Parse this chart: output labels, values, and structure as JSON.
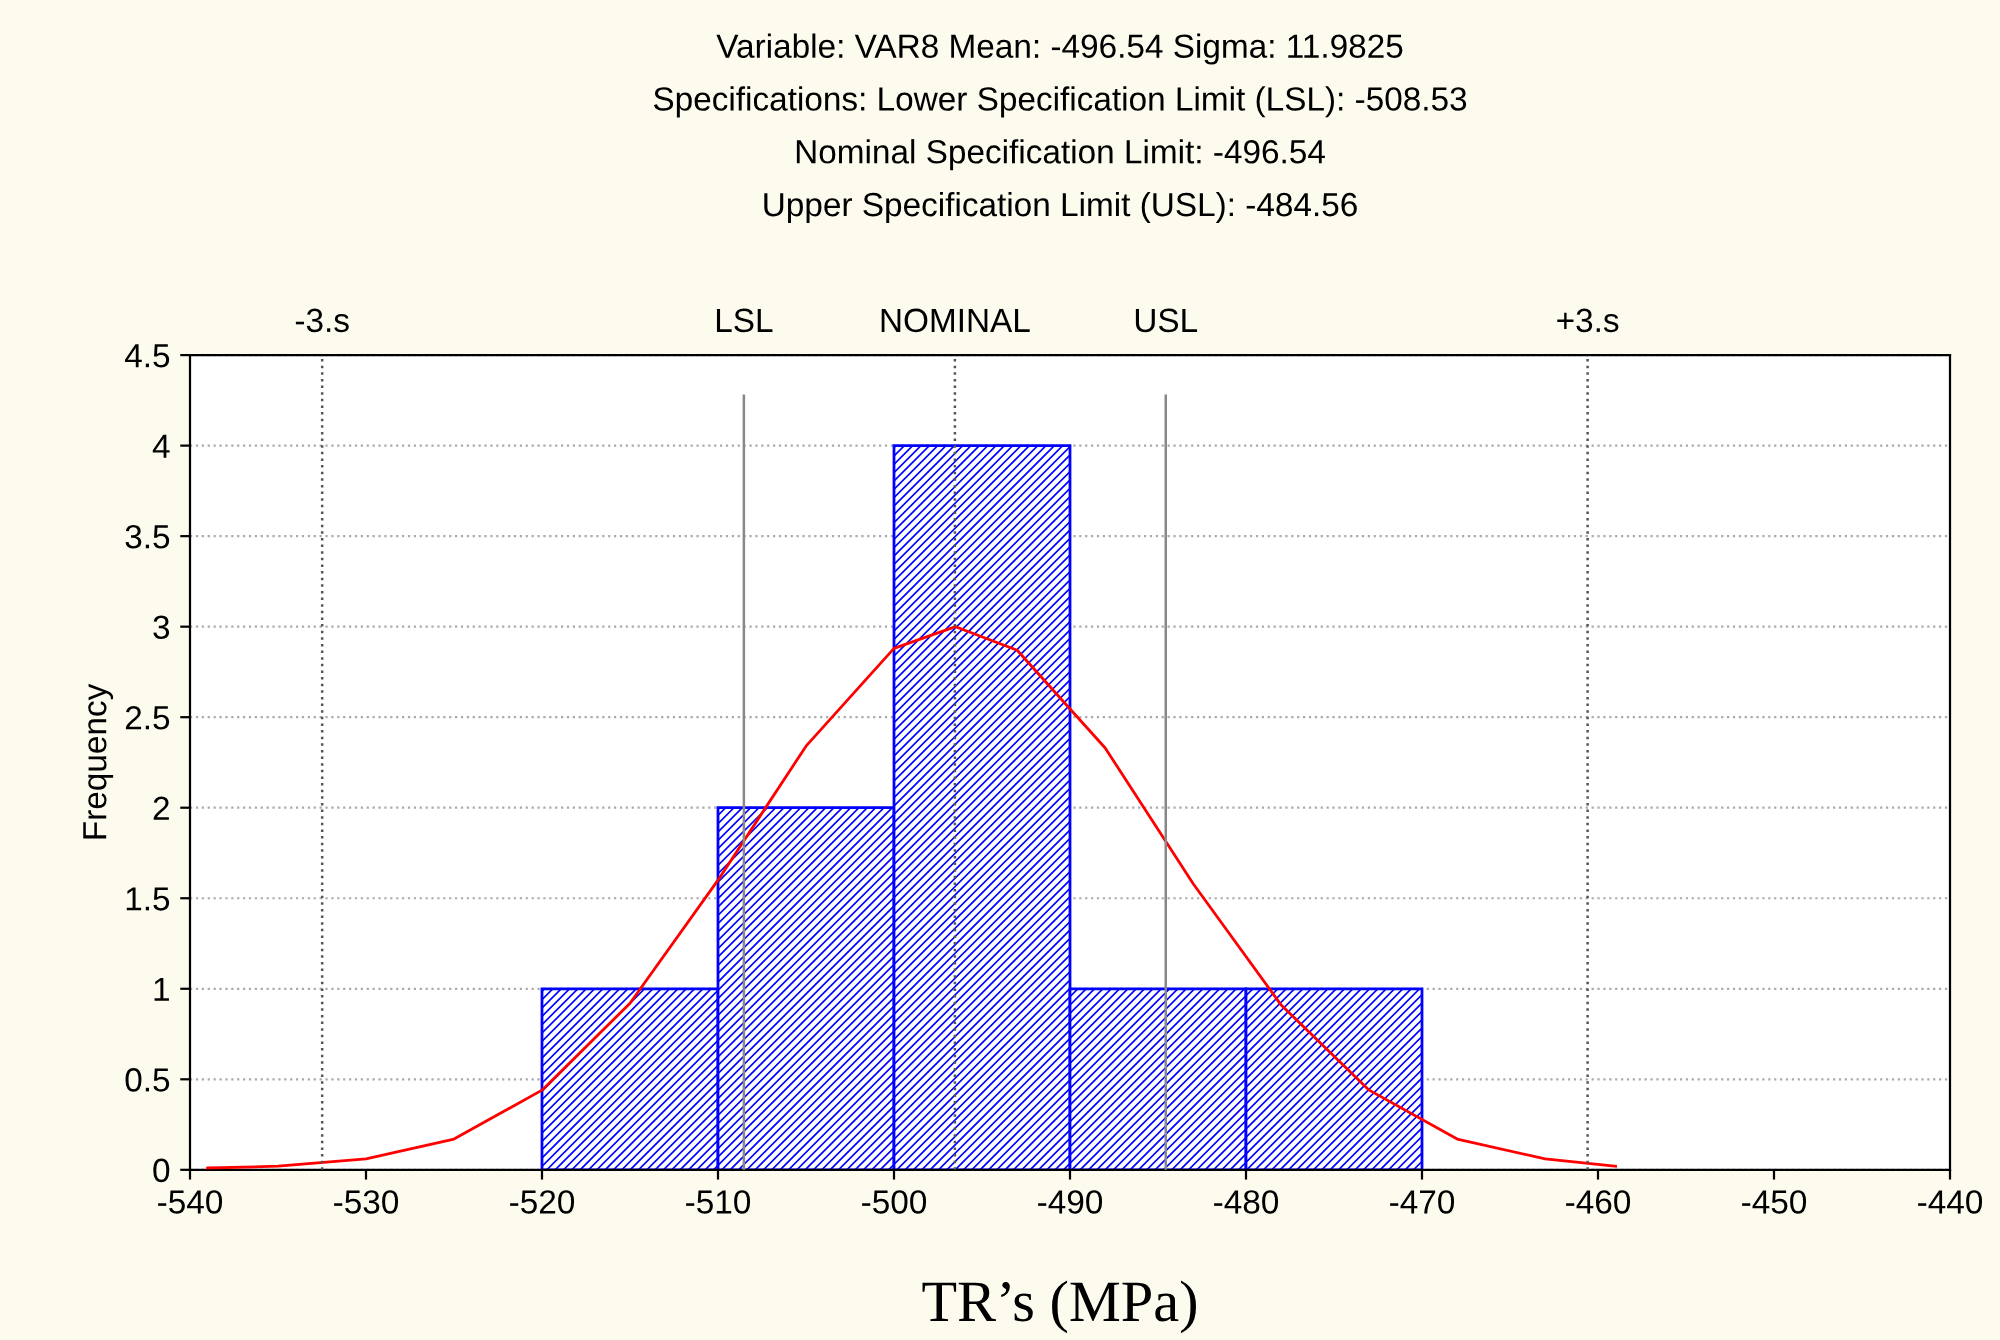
{
  "chart_data": {
    "type": "histogram",
    "title": "Variable: VAR8 Mean: -496.54 Sigma: 11.9825\nSpecifications: Lower Specification Limit (LSL): -508.53\nNominal Specification Limit: -496.54\nUpper Specification Limit (USL): -484.56",
    "xlabel": "TR’s (MPa)",
    "ylabel": "Frequency",
    "bins": [
      -520,
      -510,
      -500,
      -490,
      -480,
      -470
    ],
    "values": [
      1,
      2,
      4,
      1,
      1
    ],
    "color": "#0000ff",
    "series": [
      {
        "type": "line",
        "color": "#ff0000",
        "x": [
          -539,
          -535,
          -530,
          -525,
          -520,
          -515,
          -510,
          -505,
          -500,
          -496.5,
          -493,
          -488,
          -483,
          -478,
          -473,
          -468,
          -463,
          -459
        ],
        "values": [
          0.01,
          0.02,
          0.06,
          0.17,
          0.44,
          0.92,
          1.6,
          2.34,
          2.88,
          3.0,
          2.87,
          2.33,
          1.58,
          0.91,
          0.44,
          0.17,
          0.06,
          0.02
        ]
      }
    ],
    "ref_lines": [
      {
        "axis": "x",
        "value": -532.49,
        "label": "-3.s",
        "color": "#555555",
        "line_style": "dotted"
      },
      {
        "axis": "x",
        "value": -508.53,
        "label": "LSL",
        "color": "#888888",
        "line_style": "solid"
      },
      {
        "axis": "x",
        "value": -496.54,
        "label": "NOMINAL",
        "color": "#555555",
        "line_style": "dotted"
      },
      {
        "axis": "x",
        "value": -484.56,
        "label": "USL",
        "color": "#888888",
        "line_style": "solid"
      },
      {
        "axis": "x",
        "value": -460.59,
        "label": "+3.s",
        "color": "#555555",
        "line_style": "dotted"
      }
    ],
    "xlim": [
      -540,
      -440
    ],
    "xticks": [
      -540,
      -530,
      -520,
      -510,
      -500,
      -490,
      -480,
      -470,
      -460,
      -450,
      -440
    ],
    "ylim": [
      0,
      4.5
    ],
    "yticks": [
      0,
      0.5,
      1,
      1.5,
      2,
      2.5,
      3,
      3.5,
      4,
      4.5
    ],
    "grid": "y",
    "legend": false
  }
}
